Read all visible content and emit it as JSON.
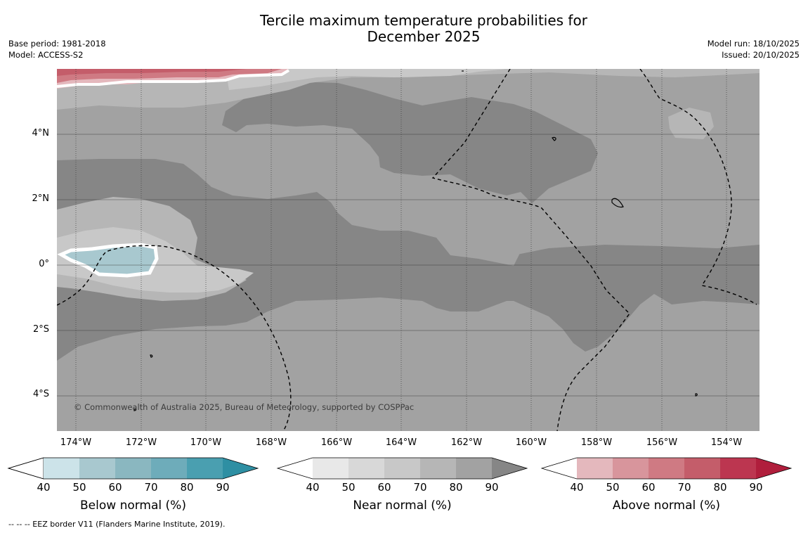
{
  "title_line1": "Tercile maximum temperature probabilities for",
  "title_line2": "December 2025",
  "base_period": "Base period: 1981-2018",
  "model": "Model: ACCESS-S2",
  "model_run": "Model run: 18/10/2025",
  "issued": "Issued: 20/10/2025",
  "copyright": "© Commonwealth of Australia 2025, Bureau of Meteorology, supported by COSPPac",
  "lat_labels": [
    "4°N",
    "2°N",
    "0°",
    "2°S",
    "4°S"
  ],
  "lon_labels": [
    "174°W",
    "172°W",
    "170°W",
    "168°W",
    "166°W",
    "164°W",
    "162°W",
    "160°W",
    "158°W",
    "156°W",
    "154°W"
  ],
  "legends": {
    "below": {
      "title": "Below normal (%)",
      "ticks": [
        "40",
        "50",
        "60",
        "70",
        "80",
        "90"
      ],
      "colors": [
        "#cce3e9",
        "#a8c8cf",
        "#8ab7c0",
        "#6eacba",
        "#4a9fb0",
        "#2e8fa3"
      ]
    },
    "near": {
      "title": "Near normal (%)",
      "ticks": [
        "40",
        "50",
        "60",
        "70",
        "80",
        "90"
      ],
      "colors": [
        "#e8e8e8",
        "#d8d8d8",
        "#c8c8c8",
        "#b6b6b6",
        "#a2a2a2",
        "#868686"
      ]
    },
    "above": {
      "title": "Above normal (%)",
      "ticks": [
        "40",
        "50",
        "60",
        "70",
        "80",
        "90"
      ],
      "colors": [
        "#e4b8bd",
        "#d8959c",
        "#cf7a83",
        "#c45d6a",
        "#bc3650",
        "#b01e3c"
      ]
    }
  },
  "footnote": "--  --  -- EEZ border V11 (Flanders Marine Institute, 2019)."
}
